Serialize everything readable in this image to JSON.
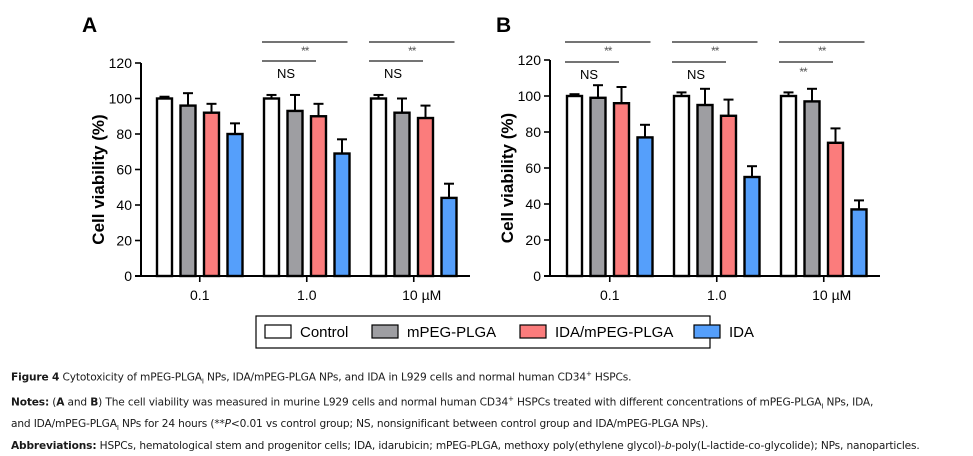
{
  "chart_data": [
    {
      "type": "bar",
      "panel": "A",
      "title": "",
      "xlabel": "",
      "ylabel": "Cell viability (%)",
      "ylim": [
        0,
        120
      ],
      "yticks": [
        0,
        20,
        40,
        60,
        80,
        100,
        120
      ],
      "categories": [
        "0.1",
        "1.0",
        "10 µM"
      ],
      "series": [
        {
          "name": "Control",
          "values": [
            100,
            100,
            100
          ],
          "errors": [
            1,
            2,
            2
          ]
        },
        {
          "name": "mPEG-PLGA",
          "values": [
            96,
            93,
            92
          ],
          "errors": [
            7,
            9,
            8
          ]
        },
        {
          "name": "IDA/mPEG-PLGA",
          "values": [
            92,
            90,
            89
          ],
          "errors": [
            5,
            7,
            7
          ]
        },
        {
          "name": "IDA",
          "values": [
            80,
            69,
            44
          ],
          "errors": [
            6,
            8,
            8
          ]
        }
      ],
      "annotations": [
        {
          "group": 1,
          "upper": "**",
          "lower": "NS"
        },
        {
          "group": 2,
          "upper": "**",
          "lower": "NS"
        }
      ],
      "grid": false
    },
    {
      "type": "bar",
      "panel": "B",
      "title": "",
      "xlabel": "",
      "ylabel": "Cell viability (%)",
      "ylim": [
        0,
        120
      ],
      "yticks": [
        0,
        20,
        40,
        60,
        80,
        100,
        120
      ],
      "categories": [
        "0.1",
        "1.0",
        "10 µM"
      ],
      "series": [
        {
          "name": "Control",
          "values": [
            100,
            100,
            100
          ],
          "errors": [
            1,
            2,
            2
          ]
        },
        {
          "name": "mPEG-PLGA",
          "values": [
            99,
            95,
            97
          ],
          "errors": [
            7,
            9,
            7
          ]
        },
        {
          "name": "IDA/mPEG-PLGA",
          "values": [
            96,
            89,
            74
          ],
          "errors": [
            9,
            9,
            8
          ]
        },
        {
          "name": "IDA",
          "values": [
            77,
            55,
            37
          ],
          "errors": [
            7,
            6,
            5
          ]
        }
      ],
      "annotations": [
        {
          "group": 0,
          "upper": "**",
          "lower": "NS"
        },
        {
          "group": 1,
          "upper": "**",
          "lower": "NS"
        },
        {
          "group": 2,
          "upper": "**",
          "lower": "**"
        }
      ],
      "grid": false
    }
  ],
  "legend": {
    "placement": "bottom-center",
    "items": [
      {
        "label": "Control",
        "color": "#ffffff"
      },
      {
        "label": "mPEG-PLGA",
        "color": "#9e9ea2"
      },
      {
        "label": "IDA/mPEG-PLGA",
        "color": "#fb7c7c"
      },
      {
        "label": "IDA",
        "color": "#559ffb"
      }
    ]
  },
  "caption": {
    "figure_label": "Figure 4",
    "figure_text_1": " Cytotoxicity of mPEG-PLGA",
    "figure_sub": "I",
    "figure_text_2": " NPs, IDA/mPEG-PLGA NPs, and IDA in L929 cells and normal human CD34",
    "figure_sup": "+",
    "figure_text_3": " HSPCs.",
    "notes_label": "Notes:",
    "notes_1": " (",
    "notes_A": "A",
    "notes_and": " and ",
    "notes_B": "B",
    "notes_2": ") The cell viability was measured in murine L929 cells and normal human CD34",
    "notes_sup": "+",
    "notes_3": " HSPCs treated with different concentrations of mPEG-PLGA",
    "notes_sub": "I",
    "notes_4": " NPs, IDA,",
    "notes_line2_1": "and IDA/mPEG-PLGA",
    "notes_line2_sub": "I",
    "notes_line2_2": " NPs for 24 hours (**",
    "notes_line2_p": "P",
    "notes_line2_3": "<0.01 vs control group; NS, nonsignificant between control group and IDA/mPEG-PLGA NPs).",
    "abbrev_label": "Abbreviations:",
    "abbrev_1": " HSPCs, hematological stem and progenitor cells; IDA, idarubicin; mPEG-PLGA, methoxy poly(ethylene glycol)-",
    "abbrev_b": "b",
    "abbrev_2": "-poly(L-lactide-co-glycolide); NPs, nanoparticles."
  }
}
